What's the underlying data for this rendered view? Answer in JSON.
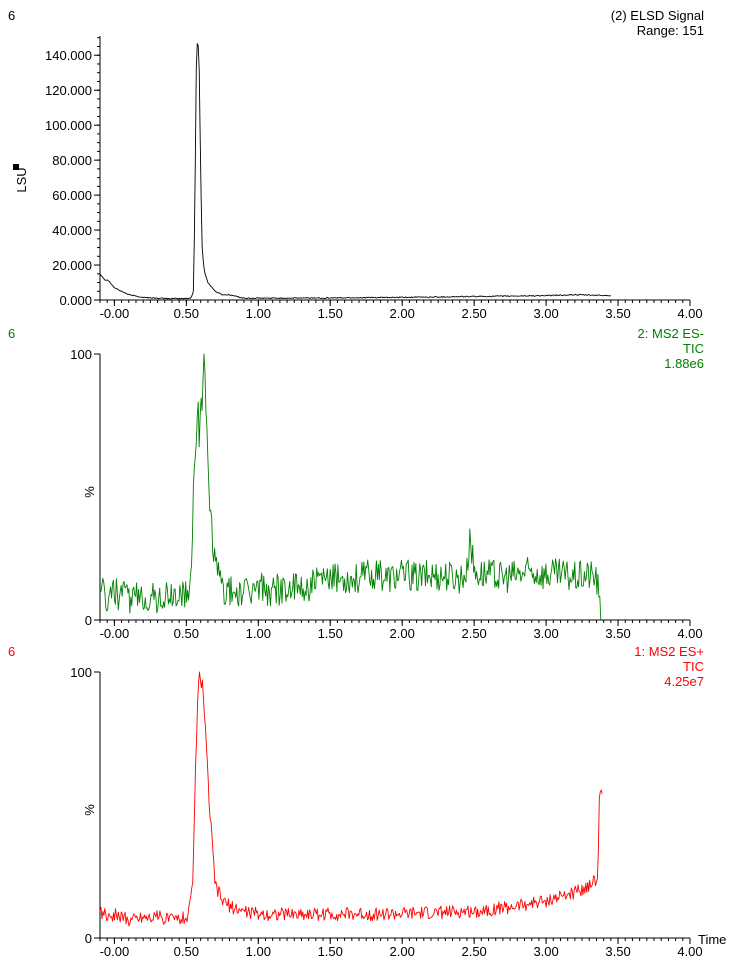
{
  "chart_data": [
    {
      "type": "line",
      "sample_label": "6",
      "title": "(2) ELSD Signal",
      "subtitle": "Range: 151",
      "ylabel": "LSU",
      "xlabel": "",
      "xlim": [
        -0.1,
        4.0
      ],
      "ylim": [
        0,
        151
      ],
      "x_ticks": [
        -0.0,
        0.5,
        1.0,
        1.5,
        2.0,
        2.5,
        3.0,
        3.5,
        4.0
      ],
      "x_tick_labels": [
        "-0.00",
        "0.50",
        "1.00",
        "1.50",
        "2.00",
        "2.50",
        "3.00",
        "3.50",
        "4.00"
      ],
      "y_ticks": [
        0,
        20,
        40,
        60,
        80,
        100,
        120,
        140
      ],
      "y_tick_labels": [
        "0.000",
        "20.000",
        "40.000",
        "60.000",
        "80.000",
        "100.000",
        "120.000",
        "140.000"
      ],
      "color": "#000000",
      "series": [
        {
          "x": [
            -0.1,
            -0.08,
            -0.06,
            -0.05,
            -0.04,
            -0.02,
            0.0,
            0.05,
            0.1,
            0.2,
            0.3,
            0.4,
            0.5,
            0.53,
            0.55,
            0.56,
            0.57,
            0.58,
            0.59,
            0.6,
            0.61,
            0.62,
            0.63,
            0.65,
            0.7,
            0.75,
            0.8,
            0.9,
            1.0,
            1.5,
            2.0,
            2.5,
            3.0,
            3.2,
            3.45
          ],
          "y": [
            15,
            13,
            11,
            12,
            11,
            9,
            7,
            5,
            3,
            1.5,
            1,
            0.8,
            0.8,
            1,
            5,
            60,
            140,
            151,
            130,
            70,
            30,
            20,
            15,
            10,
            5,
            3,
            3,
            1,
            1,
            1.2,
            1.5,
            2,
            2.5,
            3,
            2.5
          ]
        }
      ]
    },
    {
      "type": "line",
      "sample_label": "6",
      "title": "2: MS2 ES-",
      "subtitle": "TIC",
      "scale_label": "1.88e6",
      "ylabel": "%",
      "xlabel": "",
      "xlim": [
        -0.1,
        4.0
      ],
      "ylim": [
        0,
        100
      ],
      "x_ticks": [
        -0.0,
        0.5,
        1.0,
        1.5,
        2.0,
        2.5,
        3.0,
        3.5,
        4.0
      ],
      "x_tick_labels": [
        "-0.00",
        "0.50",
        "1.00",
        "1.50",
        "2.00",
        "2.50",
        "3.00",
        "3.50",
        "4.00"
      ],
      "y_ticks": [
        0,
        100
      ],
      "y_tick_labels": [
        "0",
        "100"
      ],
      "color": "#008000",
      "series": [
        {
          "x": [
            -0.1,
            -0.05,
            0.0,
            0.1,
            0.2,
            0.3,
            0.4,
            0.5,
            0.53,
            0.55,
            0.56,
            0.57,
            0.58,
            0.59,
            0.6,
            0.61,
            0.62,
            0.63,
            0.64,
            0.65,
            0.66,
            0.67,
            0.68,
            0.7,
            0.75,
            0.8,
            0.9,
            1.0,
            1.1,
            1.2,
            1.3,
            1.4,
            1.5,
            1.6,
            1.7,
            1.8,
            1.9,
            2.0,
            2.1,
            2.2,
            2.3,
            2.4,
            2.45,
            2.47,
            2.5,
            2.6,
            2.7,
            2.8,
            2.9,
            3.0,
            3.1,
            3.2,
            3.3,
            3.35,
            3.36,
            3.37,
            3.38
          ],
          "y": [
            12,
            8,
            10,
            8,
            9,
            8,
            9,
            10,
            12,
            50,
            62,
            70,
            85,
            70,
            88,
            80,
            100,
            90,
            72,
            60,
            40,
            45,
            30,
            22,
            12,
            11,
            10,
            12,
            11,
            12,
            12,
            14,
            15,
            16,
            16,
            17,
            16,
            17,
            16,
            17,
            17,
            16,
            18,
            33,
            18,
            17,
            16,
            17,
            18,
            17,
            17,
            16,
            17,
            16,
            12,
            6,
            0
          ]
        }
      ]
    },
    {
      "type": "line",
      "sample_label": "6",
      "title": "1: MS2 ES+",
      "subtitle": "TIC",
      "scale_label": "4.25e7",
      "ylabel": "%",
      "xlabel": "Time",
      "xlim": [
        -0.1,
        4.0
      ],
      "ylim": [
        0,
        100
      ],
      "x_ticks": [
        -0.0,
        0.5,
        1.0,
        1.5,
        2.0,
        2.5,
        3.0,
        3.5,
        4.0
      ],
      "x_tick_labels": [
        "-0.00",
        "0.50",
        "1.00",
        "1.50",
        "2.00",
        "2.50",
        "3.00",
        "3.50",
        "4.00"
      ],
      "y_ticks": [
        0,
        100
      ],
      "y_tick_labels": [
        "0",
        "100"
      ],
      "color": "#ff0000",
      "series": [
        {
          "x": [
            -0.1,
            -0.05,
            0.0,
            0.1,
            0.2,
            0.3,
            0.4,
            0.5,
            0.52,
            0.54,
            0.55,
            0.56,
            0.57,
            0.58,
            0.59,
            0.6,
            0.61,
            0.62,
            0.63,
            0.64,
            0.65,
            0.66,
            0.68,
            0.7,
            0.75,
            0.8,
            0.9,
            1.0,
            1.2,
            1.5,
            2.0,
            2.5,
            2.8,
            3.0,
            3.2,
            3.3,
            3.35,
            3.36,
            3.37,
            3.38,
            3.39
          ],
          "y": [
            10,
            8,
            9,
            7,
            8,
            8,
            7,
            8,
            10,
            18,
            30,
            55,
            75,
            90,
            100,
            96,
            97,
            90,
            80,
            70,
            60,
            50,
            35,
            20,
            14,
            12,
            10,
            9,
            9,
            9,
            9,
            10,
            12,
            14,
            17,
            20,
            22,
            25,
            52,
            55,
            54
          ]
        }
      ]
    }
  ]
}
